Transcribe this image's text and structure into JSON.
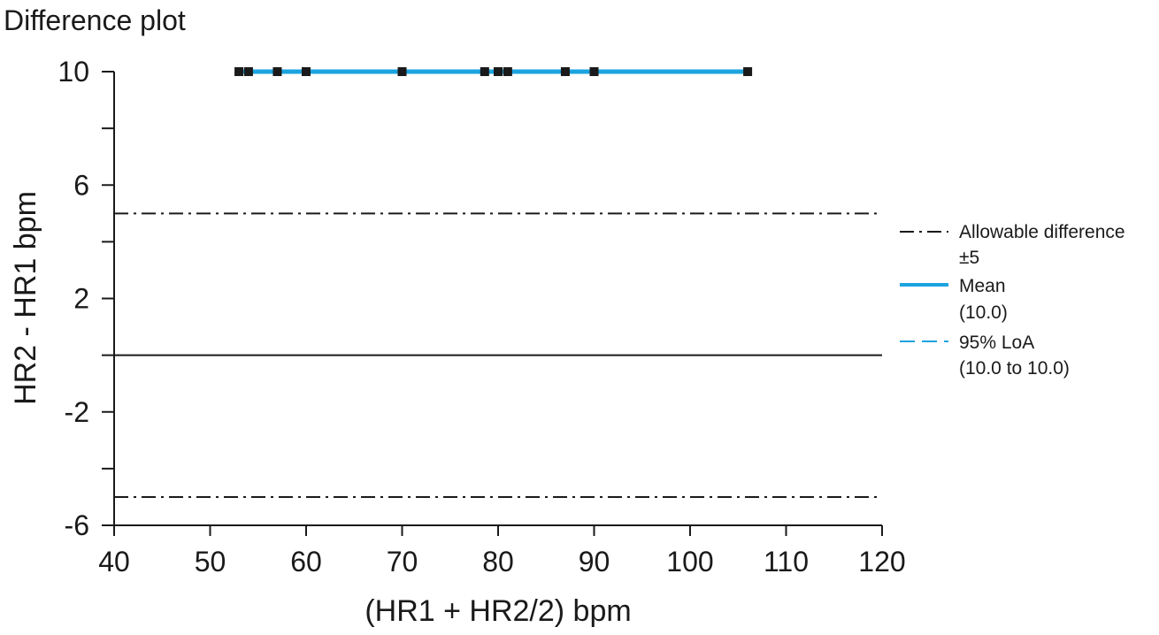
{
  "chart_data": {
    "type": "scatter",
    "title": "Difference plot",
    "xlabel": "(HR1 + HR2/2) bpm",
    "ylabel": "HR2 - HR1 bpm",
    "xlim": [
      40,
      120
    ],
    "ylim": [
      -6,
      10
    ],
    "x_ticks": [
      40,
      50,
      60,
      70,
      80,
      90,
      100,
      110,
      120
    ],
    "y_ticks": [
      10,
      6,
      2,
      -2,
      -6
    ],
    "y_minor_ticks": [
      8,
      4,
      0,
      -4
    ],
    "points": [
      {
        "x": 53,
        "y": 10
      },
      {
        "x": 54,
        "y": 10
      },
      {
        "x": 57,
        "y": 10
      },
      {
        "x": 60,
        "y": 10
      },
      {
        "x": 70,
        "y": 10
      },
      {
        "x": 78.6,
        "y": 10
      },
      {
        "x": 80,
        "y": 10
      },
      {
        "x": 81,
        "y": 10
      },
      {
        "x": 87,
        "y": 10
      },
      {
        "x": 90,
        "y": 10
      },
      {
        "x": 106,
        "y": 10
      }
    ],
    "zero_line": 0,
    "allowable_difference": 5,
    "mean": 10.0,
    "loa": [
      10.0,
      10.0
    ],
    "mean_line_x_range": [
      53,
      106
    ],
    "colors": {
      "mean": "#1aa3e0",
      "loa": "#1aa3e0",
      "allowable": "#1a1a1a",
      "points": "#1a1a1a",
      "axis": "#1a1a1a"
    },
    "legend": {
      "position": "right",
      "items": [
        {
          "key": "allowable",
          "label": "Allowable difference",
          "sublabel": "±5"
        },
        {
          "key": "mean",
          "label": "Mean",
          "sublabel": "(10.0)"
        },
        {
          "key": "loa",
          "label": "95% LoA",
          "sublabel": "(10.0 to 10.0)"
        }
      ]
    }
  }
}
